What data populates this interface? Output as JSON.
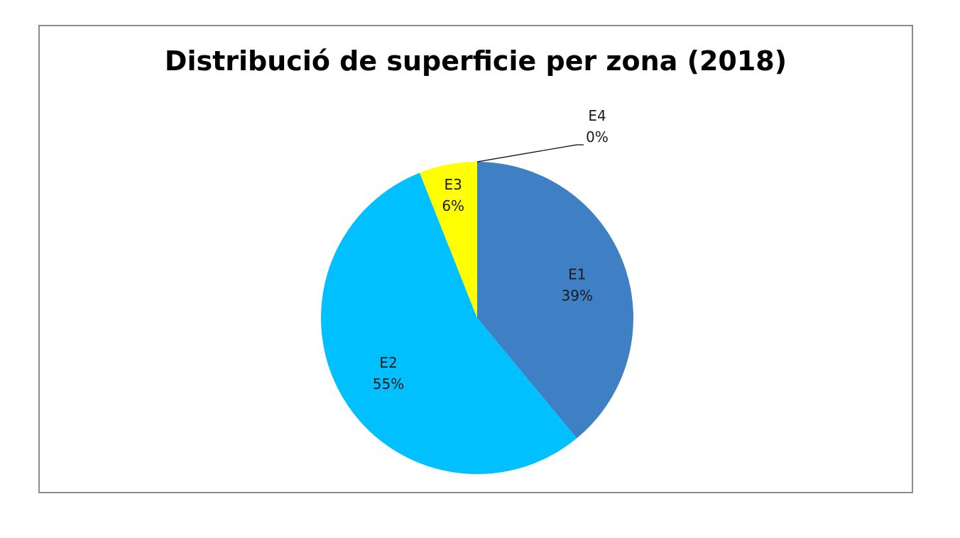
{
  "chart_data": {
    "type": "pie",
    "title": "Distribució de superficie per zona (2018)",
    "categories": [
      "E1",
      "E2",
      "E3",
      "E4"
    ],
    "values": [
      39,
      55,
      6,
      0
    ],
    "labels": [
      "39%",
      "55%",
      "6%",
      "0%"
    ],
    "colors": [
      "#3f7fc4",
      "#00c0ff",
      "#ffff00",
      "#ffffff"
    ],
    "legend": "none"
  }
}
